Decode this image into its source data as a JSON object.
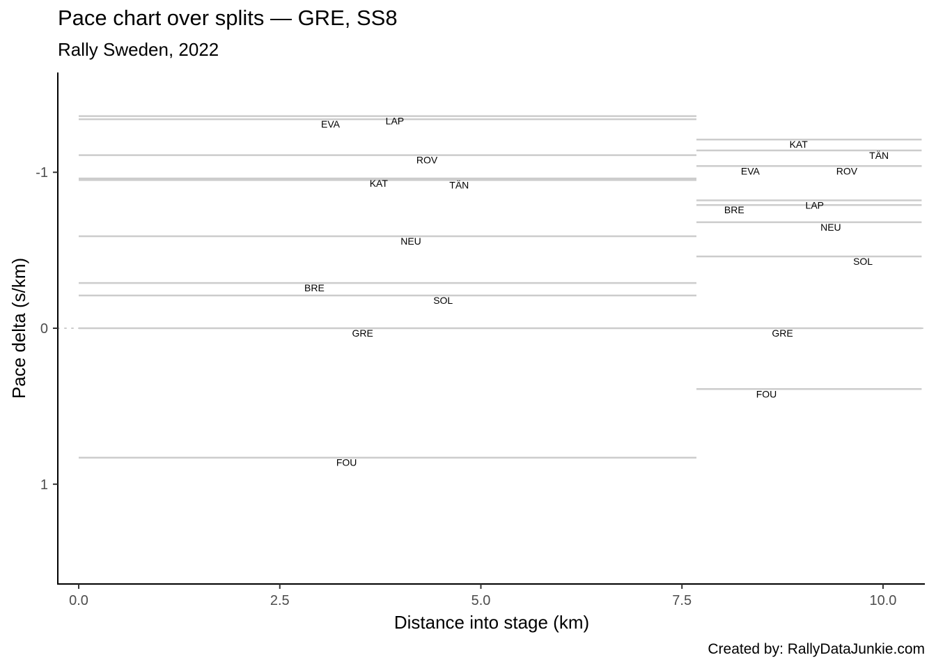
{
  "chart_data": {
    "type": "line",
    "title": "Pace chart over splits — GRE, SS8",
    "subtitle": "Rally Sweden, 2022",
    "caption": "Created by: RallyDataJunkie.com",
    "xlabel": "Distance into stage (km)",
    "ylabel": "Pace delta (s/km)",
    "xlim": [
      -0.26,
      10.52
    ],
    "ylim": [
      1.64,
      -1.64
    ],
    "y_reversed": true,
    "x_ticks": [
      {
        "value": 0,
        "label": "0.0"
      },
      {
        "value": 2.5,
        "label": "2.5"
      },
      {
        "value": 5,
        "label": "5.0"
      },
      {
        "value": 7.5,
        "label": "7.5"
      },
      {
        "value": 10,
        "label": "10.0"
      }
    ],
    "y_ticks": [
      {
        "value": -1,
        "label": "-1"
      },
      {
        "value": 0,
        "label": "0"
      },
      {
        "value": 1,
        "label": "1"
      }
    ],
    "reference_line": 0,
    "grid": false,
    "legend": "none",
    "line_color": "#cccccc",
    "splits": [
      {
        "x_start": 0,
        "x_end": 7.68,
        "segments": [
          {
            "driver": "EVA",
            "pace": -1.34,
            "label_x": 3.13
          },
          {
            "driver": "LAP",
            "pace": -1.36,
            "label_x": 3.93
          },
          {
            "driver": "ROV",
            "pace": -1.11,
            "label_x": 4.33
          },
          {
            "driver": "KAT",
            "pace": -0.96,
            "label_x": 3.73
          },
          {
            "driver": "TÄN",
            "pace": -0.95,
            "label_x": 4.73
          },
          {
            "driver": "NEU",
            "pace": -0.59,
            "label_x": 4.13
          },
          {
            "driver": "BRE",
            "pace": -0.29,
            "label_x": 2.93
          },
          {
            "driver": "SOL",
            "pace": -0.21,
            "label_x": 4.53
          },
          {
            "driver": "GRE",
            "pace": 0,
            "label_x": 3.53
          },
          {
            "driver": "FOU",
            "pace": 0.83,
            "label_x": 3.33
          }
        ]
      },
      {
        "x_start": 7.68,
        "x_end": 10.48,
        "segments": [
          {
            "driver": "KAT",
            "pace": -1.21,
            "label_x": 8.95
          },
          {
            "driver": "TÄN",
            "pace": -1.14,
            "label_x": 9.95
          },
          {
            "driver": "EVA",
            "pace": -1.04,
            "label_x": 8.35
          },
          {
            "driver": "ROV",
            "pace": -1.04,
            "label_x": 9.55
          },
          {
            "driver": "LAP",
            "pace": -0.82,
            "label_x": 9.15
          },
          {
            "driver": "BRE",
            "pace": -0.79,
            "label_x": 8.15
          },
          {
            "driver": "NEU",
            "pace": -0.68,
            "label_x": 9.35
          },
          {
            "driver": "SOL",
            "pace": -0.46,
            "label_x": 9.75
          },
          {
            "driver": "GRE",
            "pace": 0,
            "label_x": 8.75
          },
          {
            "driver": "FOU",
            "pace": 0.39,
            "label_x": 8.55
          }
        ]
      }
    ]
  }
}
